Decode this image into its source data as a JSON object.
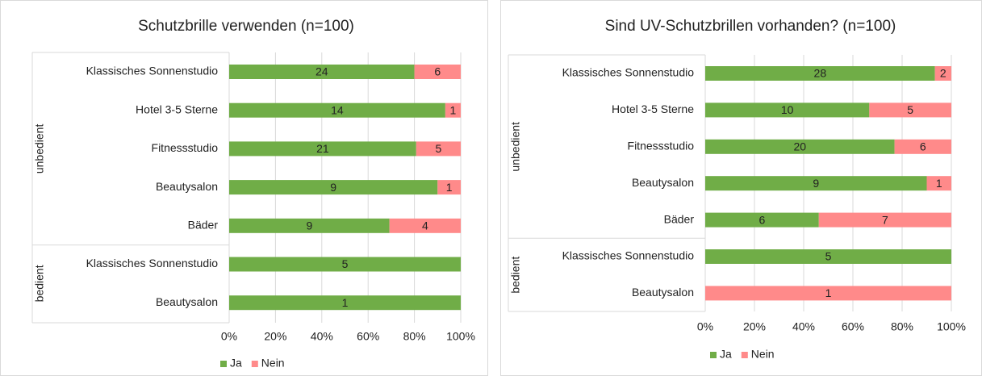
{
  "chart_data": [
    {
      "type": "stacked_bar_100",
      "orientation": "horizontal",
      "normalized": true,
      "title": "Schutzbrille verwenden (n=100)",
      "categories": [
        "Klassisches Sonnenstudio",
        "Hotel 3-5 Sterne",
        "Fitnessstudio",
        "Beautysalon",
        "Bäder",
        "Klassisches Sonnenstudio",
        "Beautysalon"
      ],
      "category_groups": [
        "unbedient",
        "unbedient",
        "unbedient",
        "unbedient",
        "unbedient",
        "bedient",
        "bedient"
      ],
      "series": [
        {
          "name": "Ja",
          "color": "#70ad47",
          "values": [
            24,
            14,
            21,
            9,
            9,
            5,
            1
          ]
        },
        {
          "name": "Nein",
          "color": "#ff8a8a",
          "values": [
            6,
            1,
            5,
            1,
            4,
            null,
            null
          ]
        }
      ],
      "xlim": [
        0,
        100
      ],
      "xticks": [
        {
          "value": 0,
          "label": "0%"
        },
        {
          "value": 20,
          "label": "20%"
        },
        {
          "value": 40,
          "label": "40%"
        },
        {
          "value": 60,
          "label": "60%"
        },
        {
          "value": 80,
          "label": "80%"
        },
        {
          "value": 100,
          "label": "100%"
        }
      ],
      "grid": true,
      "legend": "bottom"
    },
    {
      "type": "stacked_bar_100",
      "orientation": "horizontal",
      "normalized": true,
      "title": "Sind UV-Schutzbrillen vorhanden? (n=100)",
      "categories": [
        "Klassisches Sonnenstudio",
        "Hotel 3-5 Sterne",
        "Fitnessstudio",
        "Beautysalon",
        "Bäder",
        "Klassisches Sonnenstudio",
        "Beautysalon"
      ],
      "category_groups": [
        "unbedient",
        "unbedient",
        "unbedient",
        "unbedient",
        "unbedient",
        "bedient",
        "bedient"
      ],
      "series": [
        {
          "name": "Ja",
          "color": "#70ad47",
          "values": [
            28,
            10,
            20,
            9,
            6,
            5,
            null
          ]
        },
        {
          "name": "Nein",
          "color": "#ff8a8a",
          "values": [
            2,
            5,
            6,
            1,
            7,
            null,
            1
          ]
        }
      ],
      "xlim": [
        0,
        100
      ],
      "xticks": [
        {
          "value": 0,
          "label": "0%"
        },
        {
          "value": 20,
          "label": "20%"
        },
        {
          "value": 40,
          "label": "40%"
        },
        {
          "value": 60,
          "label": "60%"
        },
        {
          "value": 80,
          "label": "80%"
        },
        {
          "value": 100,
          "label": "100%"
        }
      ],
      "grid": true,
      "legend": "bottom"
    }
  ]
}
